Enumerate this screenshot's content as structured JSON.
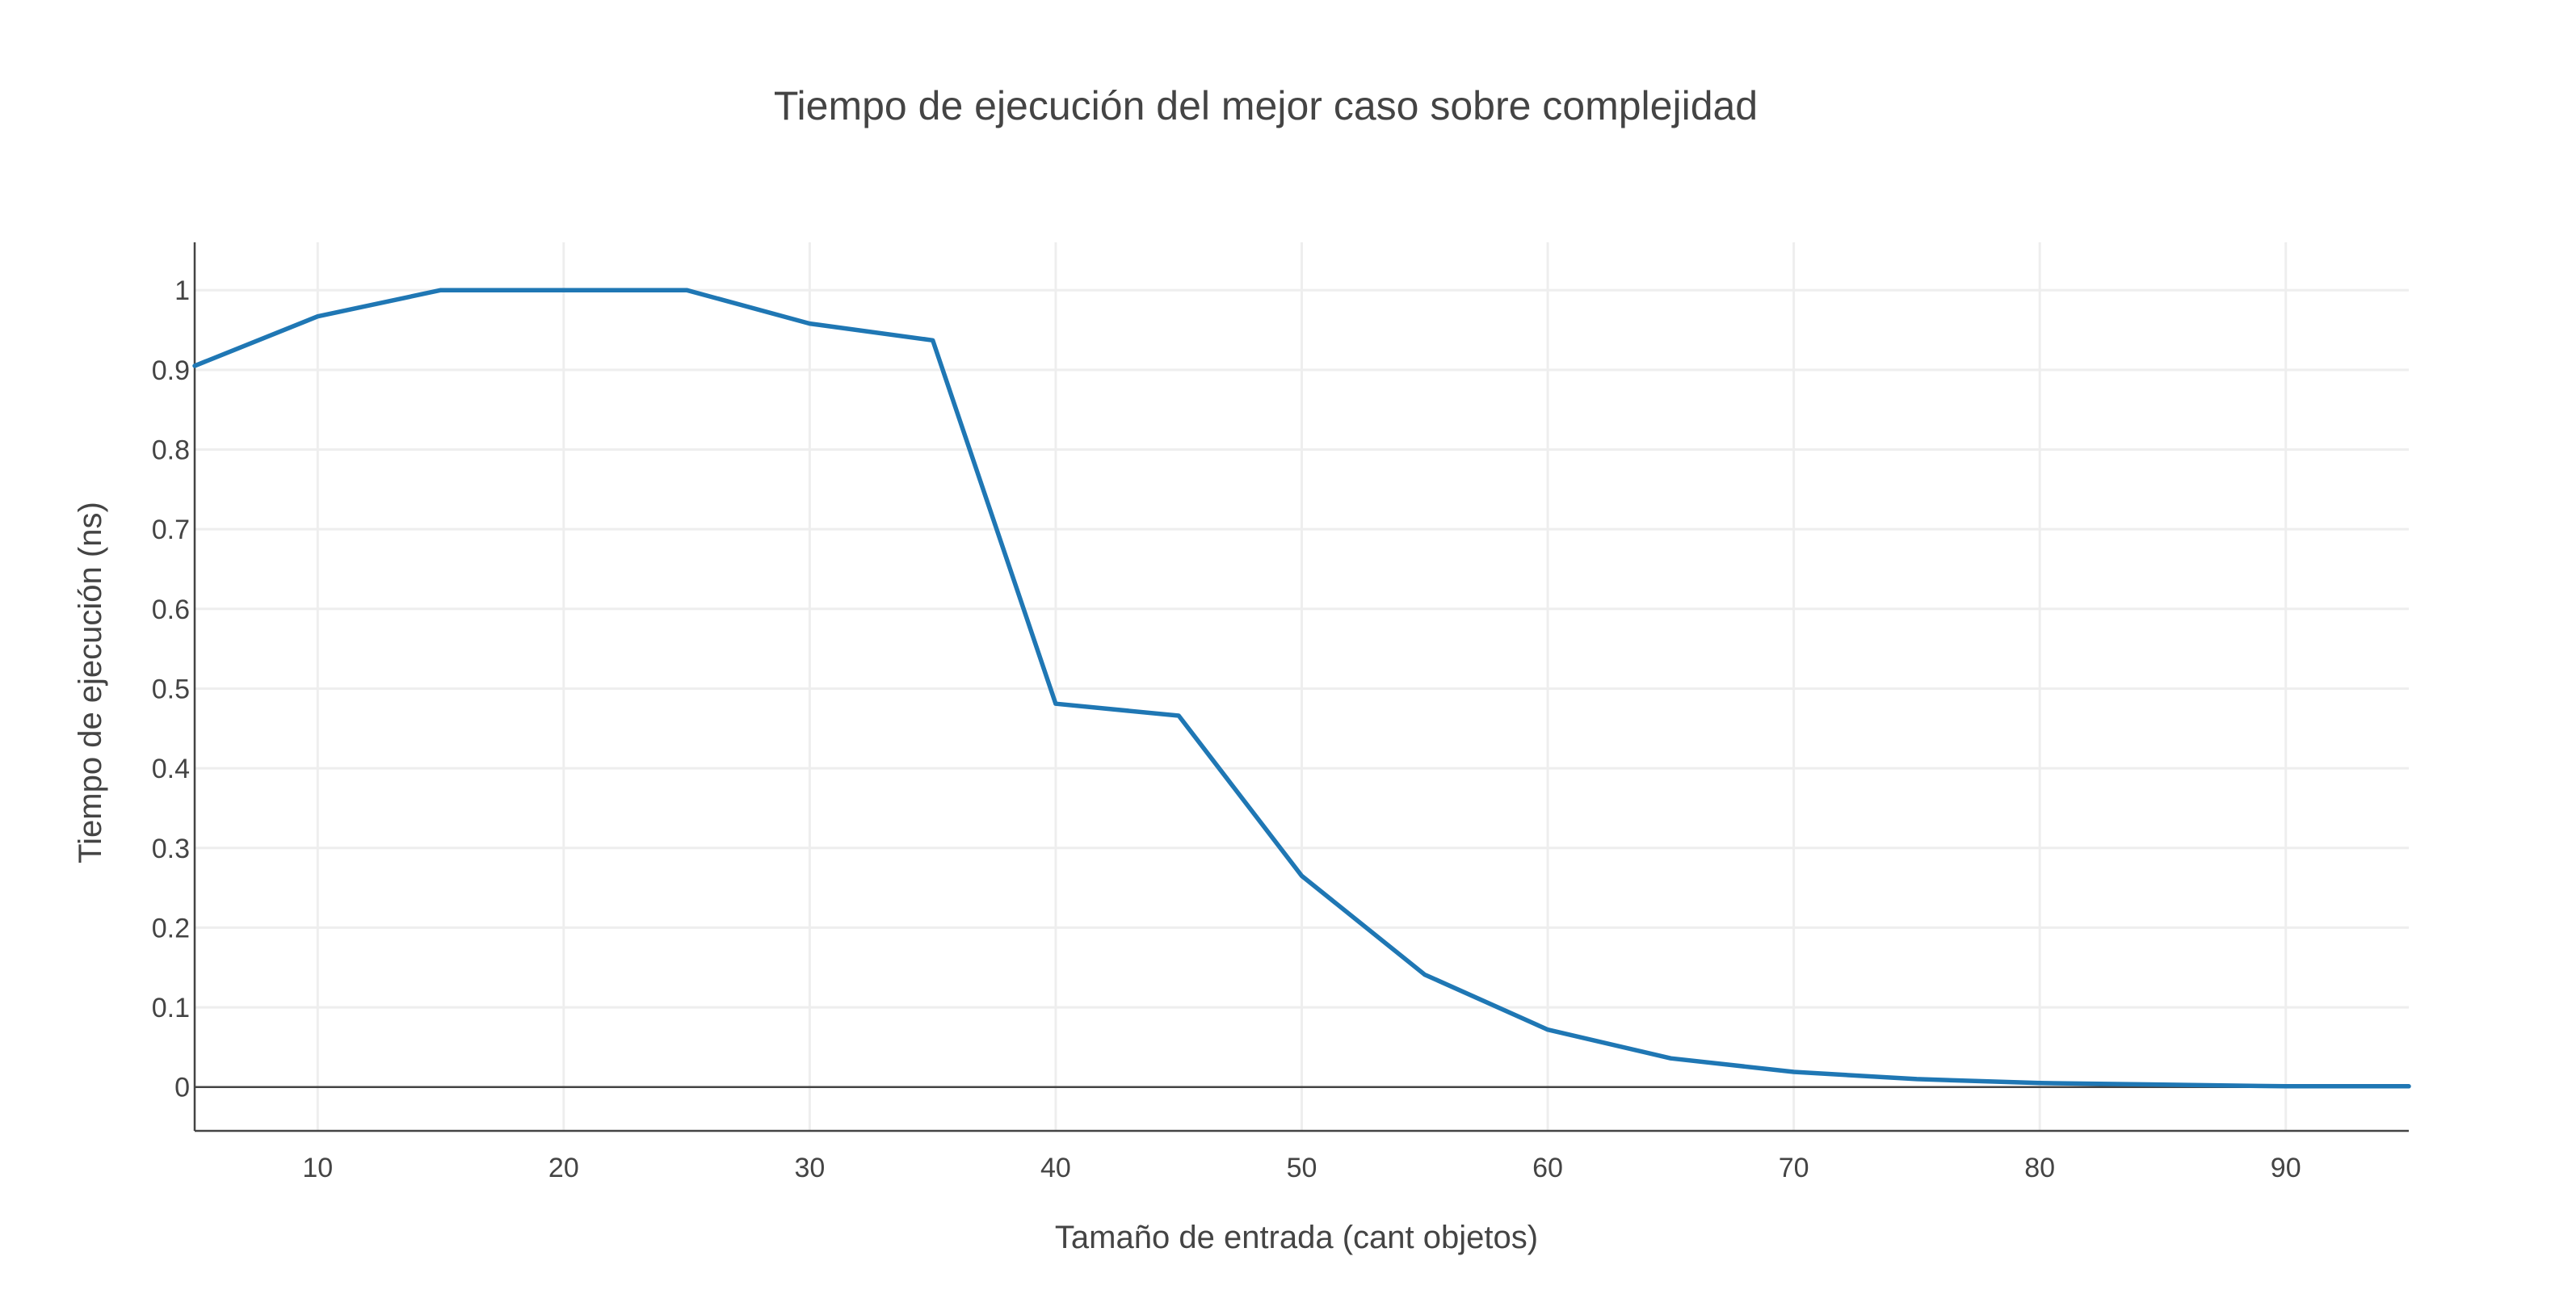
{
  "chart_data": {
    "type": "line",
    "title": "Tiempo de ejecución del mejor caso sobre complejidad",
    "xlabel": "Tamaño de  entrada (cant objetos)",
    "ylabel": "Tiempo de ejecución (ns)",
    "xlim": [
      5,
      95
    ],
    "ylim": [
      -0.055,
      1.06
    ],
    "x_ticks": [
      10,
      20,
      30,
      40,
      50,
      60,
      70,
      80,
      90
    ],
    "y_ticks": [
      0,
      0.1,
      0.2,
      0.3,
      0.4,
      0.5,
      0.6,
      0.7,
      0.8,
      0.9,
      1
    ],
    "y_tick_labels": [
      "0",
      "0.1",
      "0.2",
      "0.3",
      "0.4",
      "0.5",
      "0.6",
      "0.7",
      "0.8",
      "0.9",
      "1"
    ],
    "grid": true,
    "series": [
      {
        "color": "#1f77b4",
        "x": [
          5,
          10,
          15,
          20,
          25,
          30,
          35,
          40,
          45,
          50,
          55,
          60,
          65,
          70,
          75,
          80,
          85,
          90,
          95
        ],
        "y": [
          0.905,
          0.967,
          1.0,
          1.0,
          1.0,
          0.958,
          0.937,
          0.481,
          0.466,
          0.265,
          0.141,
          0.072,
          0.036,
          0.019,
          0.01,
          0.005,
          0.003,
          0.001,
          0.001
        ]
      }
    ]
  }
}
